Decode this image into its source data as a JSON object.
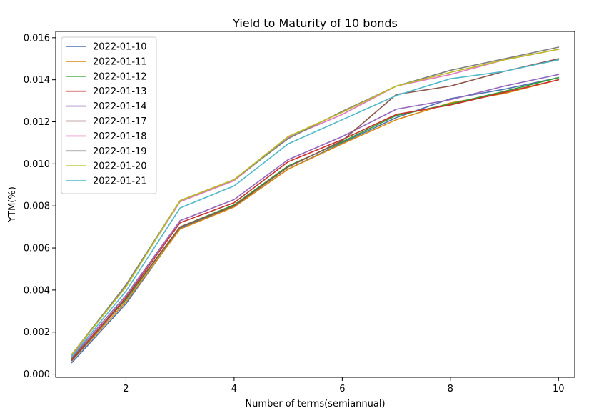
{
  "chart_data": {
    "type": "line",
    "title": "Yield to Maturity of 10 bonds",
    "xlabel": "Number of terms(semiannual)",
    "ylabel": "YTM(%)",
    "xlim": [
      0.7,
      10.3
    ],
    "ylim": [
      -0.00015,
      0.0163
    ],
    "xticks": [
      2,
      4,
      6,
      8,
      10
    ],
    "yticks": [
      0.0,
      0.002,
      0.004,
      0.006,
      0.008,
      0.01,
      0.012,
      0.014,
      0.016
    ],
    "ytick_labels": [
      "0.000",
      "0.002",
      "0.004",
      "0.006",
      "0.008",
      "0.010",
      "0.012",
      "0.014",
      "0.016"
    ],
    "grid": false,
    "legend": "upper-left",
    "x": [
      1,
      2,
      3,
      4,
      5,
      6,
      7,
      8,
      9,
      10
    ],
    "series": [
      {
        "name": "2022-01-10",
        "color": "#4c72b0",
        "values": [
          0.00055,
          0.00335,
          0.00695,
          0.00795,
          0.00975,
          0.011,
          0.0122,
          0.0131,
          0.01355,
          0.0141
        ]
      },
      {
        "name": "2022-01-11",
        "color": "#dd8a0e",
        "values": [
          0.00065,
          0.00345,
          0.0069,
          0.00795,
          0.00975,
          0.01095,
          0.0121,
          0.0129,
          0.01335,
          0.014
        ]
      },
      {
        "name": "2022-01-12",
        "color": "#2ca02c",
        "values": [
          0.00075,
          0.00355,
          0.007,
          0.00805,
          0.0099,
          0.01105,
          0.0123,
          0.01285,
          0.01345,
          0.0141
        ]
      },
      {
        "name": "2022-01-13",
        "color": "#c9302c",
        "values": [
          0.0007,
          0.00365,
          0.0072,
          0.00815,
          0.0101,
          0.01115,
          0.01235,
          0.0128,
          0.0134,
          0.014
        ]
      },
      {
        "name": "2022-01-14",
        "color": "#9467bd",
        "values": [
          0.0008,
          0.00375,
          0.0073,
          0.0083,
          0.0102,
          0.0113,
          0.0126,
          0.01305,
          0.0137,
          0.01425
        ]
      },
      {
        "name": "2022-01-17",
        "color": "#8c564b",
        "values": [
          0.00065,
          0.0036,
          0.007,
          0.008,
          0.00985,
          0.0111,
          0.0133,
          0.0137,
          0.0144,
          0.015
        ]
      },
      {
        "name": "2022-01-18",
        "color": "#e377c2",
        "values": [
          0.0009,
          0.0042,
          0.0082,
          0.0092,
          0.01125,
          0.01235,
          0.0137,
          0.01425,
          0.01495,
          0.01545
        ]
      },
      {
        "name": "2022-01-19",
        "color": "#7f7f7f",
        "values": [
          0.00095,
          0.00425,
          0.00825,
          0.00925,
          0.0112,
          0.0125,
          0.0137,
          0.01445,
          0.015,
          0.01555
        ]
      },
      {
        "name": "2022-01-20",
        "color": "#bcbd22",
        "values": [
          0.00095,
          0.00415,
          0.00825,
          0.00925,
          0.0113,
          0.01245,
          0.0137,
          0.01435,
          0.01495,
          0.01545
        ]
      },
      {
        "name": "2022-01-21",
        "color": "#4fb8c9",
        "values": [
          0.00085,
          0.00395,
          0.0079,
          0.00895,
          0.01095,
          0.0121,
          0.01325,
          0.01405,
          0.0144,
          0.01495
        ]
      }
    ]
  }
}
